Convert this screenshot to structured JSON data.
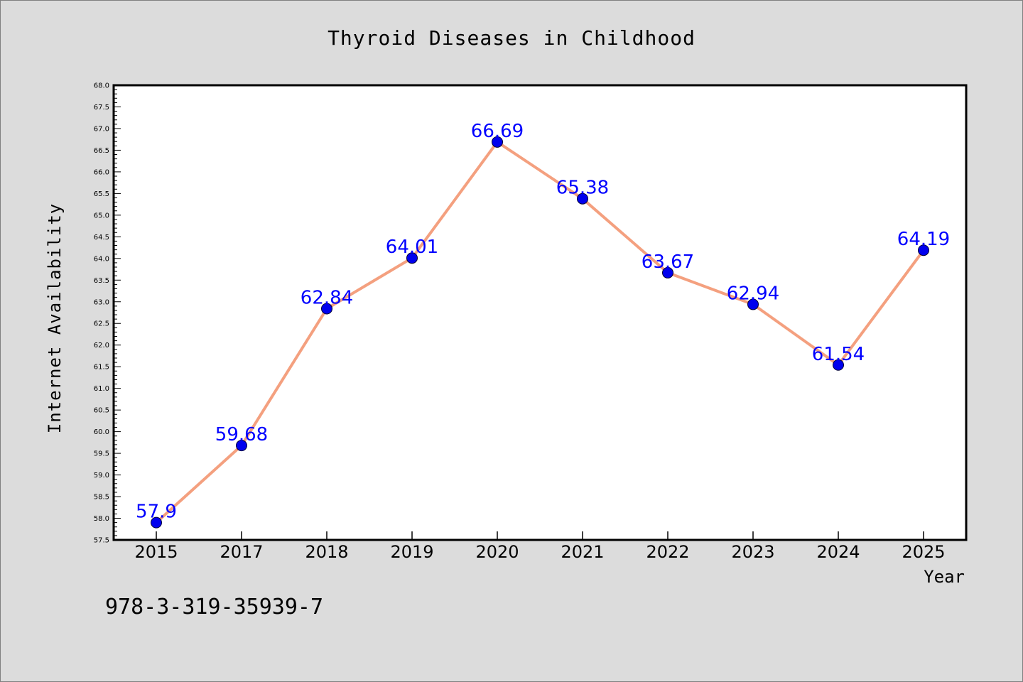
{
  "chart_data": {
    "type": "line",
    "title": "Thyroid Diseases in Childhood",
    "xlabel": "Year",
    "ylabel": "Internet Availability",
    "categories": [
      "2015",
      "2017",
      "2018",
      "2019",
      "2020",
      "2021",
      "2022",
      "2023",
      "2024",
      "2025"
    ],
    "series": [
      {
        "values": [
          57.9,
          59.68,
          62.84,
          64.01,
          66.69,
          65.38,
          63.67,
          62.94,
          61.54,
          64.19
        ],
        "labels": [
          "57.9",
          "59.68",
          "62.84",
          "64.01",
          "66.69",
          "65.38",
          "63.67",
          "62.94",
          "61.54",
          "64.19"
        ],
        "line_color": "#f4a07f",
        "marker_color": "#0000ee"
      }
    ],
    "ylim": [
      57.5,
      68.0
    ],
    "ytick_step": 0.5,
    "grid": false,
    "legend": "none",
    "label_color": "#0000ff"
  },
  "annotation": "978-3-319-35939-7"
}
